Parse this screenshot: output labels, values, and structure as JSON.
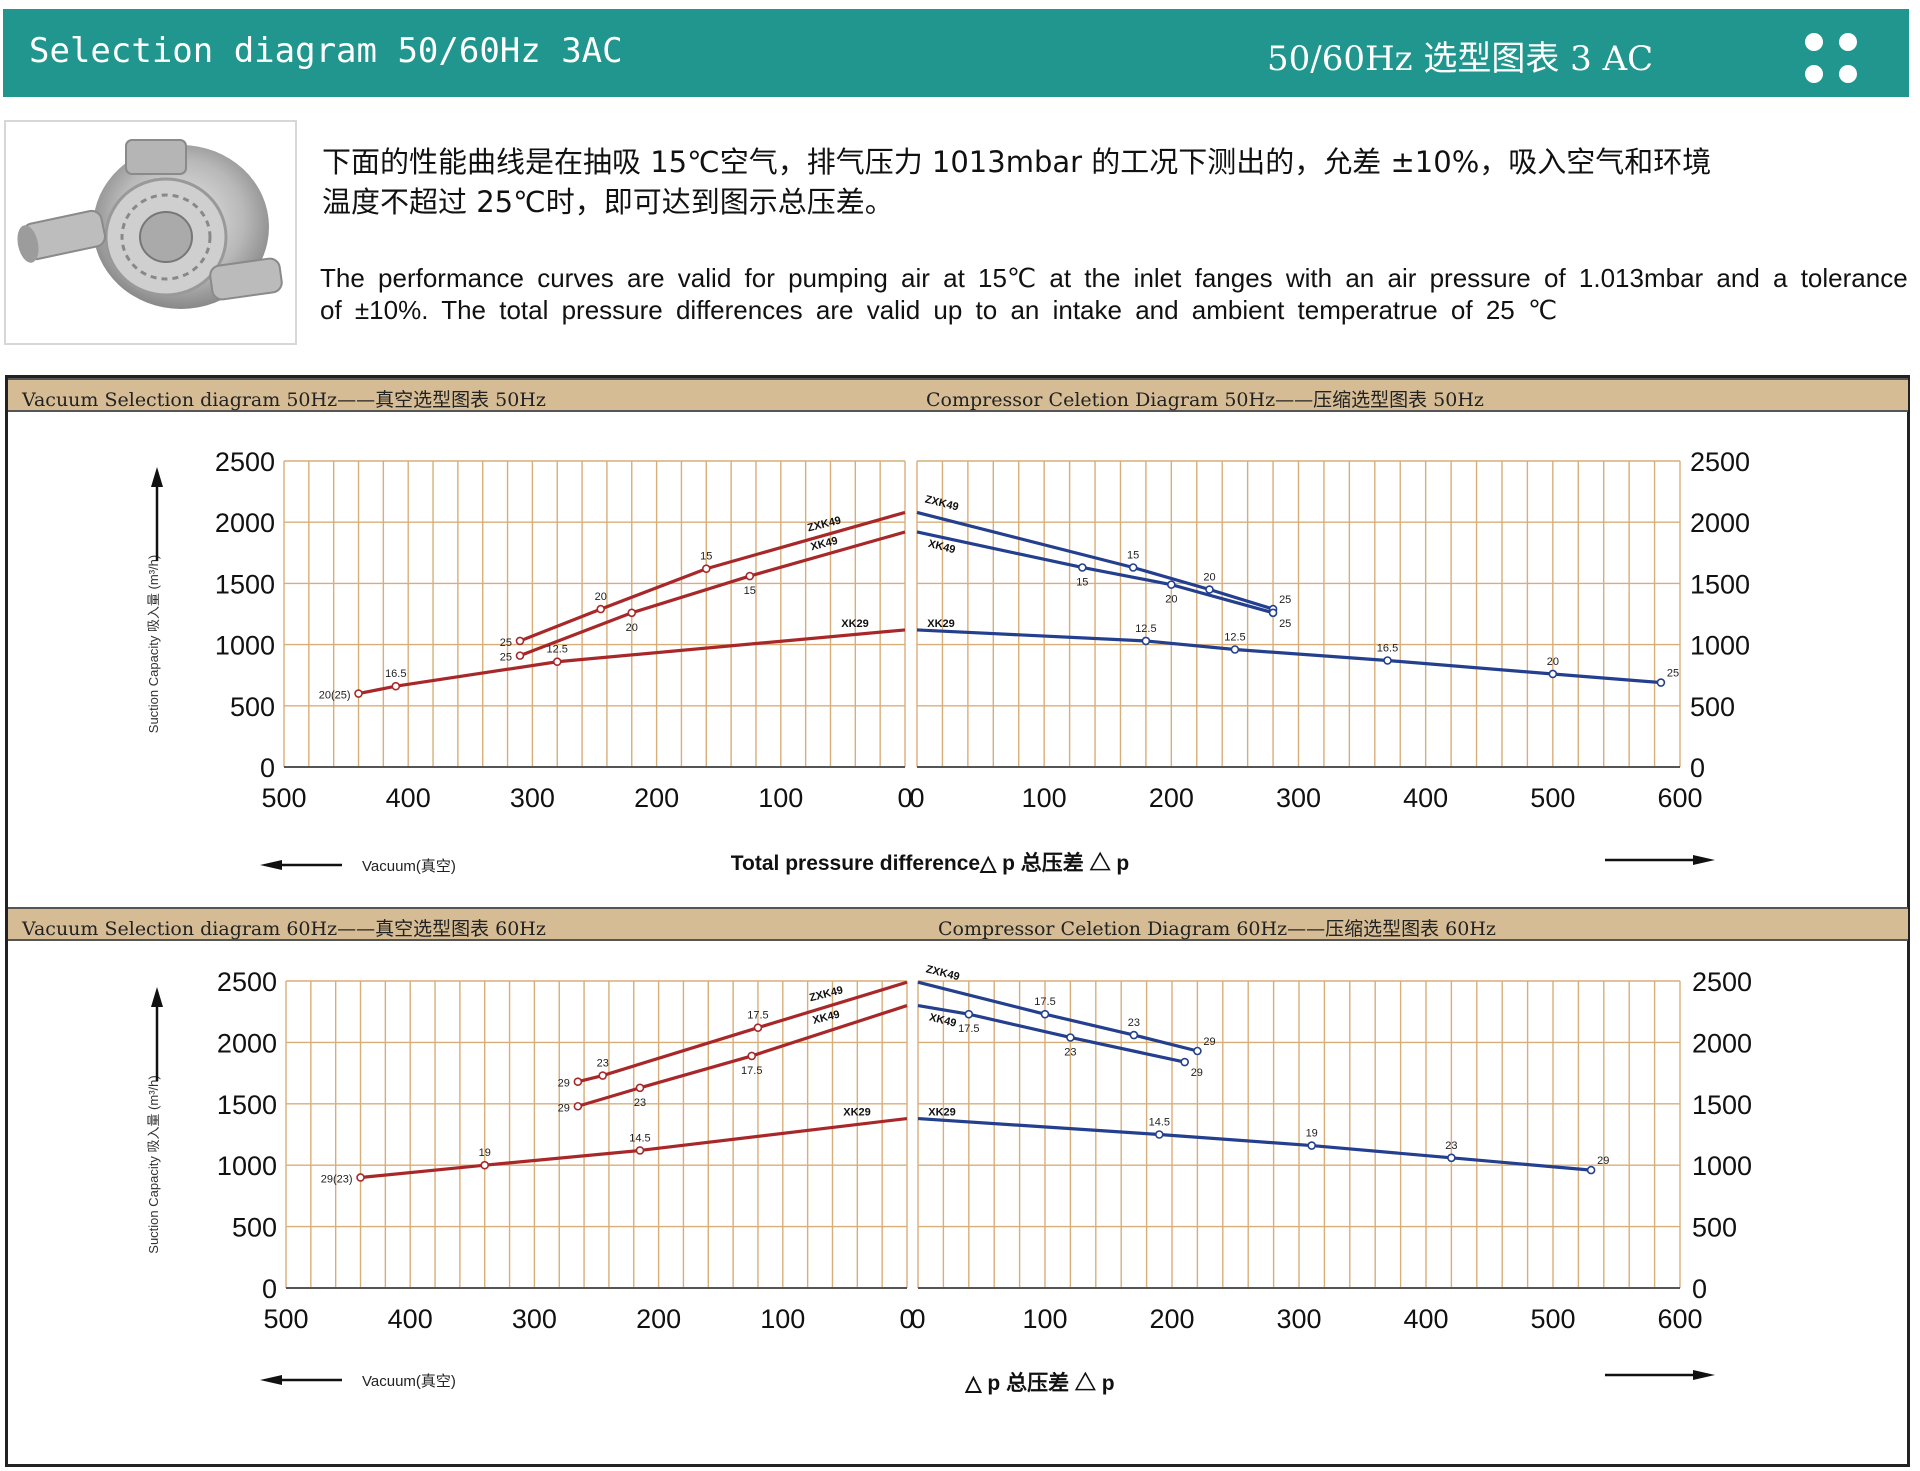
{
  "header": {
    "title_en": "Selection diagram 50/60Hz 3AC",
    "title_cn": "50/60Hz 选型图表 3 AC",
    "colors": {
      "teal": "#21968e",
      "red": "#a8282a",
      "blue": "#233f8e",
      "band": "#d5bc95",
      "grid": "#d8ae78"
    }
  },
  "intro": {
    "cn_line1": "下面的性能曲线是在抽吸 15℃空气，排气压力 1013mbar 的工况下测出的，允差 ±10%，吸入空气和环境",
    "cn_line2": "温度不超过 25℃时，即可达到图示总压差。",
    "en_line1": "The performance curves are valid for pumping air at 15℃ at the inlet fanges with an air pressure of 1.013mbar and a tolerance",
    "en_line2": "of ±10%. The total pressure differences are valid up to an intake and ambient temperatrue of 25 ℃"
  },
  "sections": {
    "s50": {
      "left_title": "Vacuum Selection diagram 50Hz——真空选型图表 50Hz",
      "right_title": "Compressor Celetion Diagram 50Hz——压缩选型图表 50Hz"
    },
    "s60": {
      "left_title": "Vacuum Selection diagram 60Hz——真空选型图表 60Hz",
      "right_title": "Compressor Celetion Diagram 60Hz——压缩选型图表 60Hz"
    }
  },
  "chart_data": [
    {
      "type": "line",
      "id": "c50",
      "frequency": "50Hz",
      "ylabel": "Suction Capacity 吸入量 (m³/h)",
      "vacuum_label": "Vacuum(真空)",
      "xlabel": "Total pressure difference△ p 总压差 △ p",
      "y_ticks": [
        "2500",
        "2000",
        "1500",
        "1000",
        "500",
        "0"
      ],
      "vac_ticks": [
        "500",
        "400",
        "300",
        "200",
        "100",
        "0"
      ],
      "press_ticks": [
        "0",
        "100",
        "200",
        "300",
        "400",
        "500",
        "600"
      ],
      "ylim": [
        0,
        2500
      ],
      "vacuum_xlim": [
        500,
        0
      ],
      "pressure_xlim": [
        0,
        600
      ],
      "vacuum_series": [
        {
          "name": "ZXK49",
          "points": [
            [
              310,
              1030
            ],
            [
              245,
              1290
            ],
            [
              160,
              1620
            ],
            [
              0,
              2080
            ]
          ],
          "labels": [
            "25",
            "20",
            "15",
            ""
          ]
        },
        {
          "name": "XK49",
          "points": [
            [
              310,
              910
            ],
            [
              220,
              1260
            ],
            [
              125,
              1560
            ],
            [
              0,
              1920
            ]
          ],
          "labels": [
            "25",
            "20",
            "15",
            ""
          ]
        },
        {
          "name": "XK29",
          "points": [
            [
              440,
              600
            ],
            [
              410,
              660
            ],
            [
              280,
              860
            ],
            [
              0,
              1120
            ]
          ],
          "labels": [
            "20(25)",
            "16.5",
            "12.5",
            ""
          ]
        }
      ],
      "pressure_series": [
        {
          "name": "ZXK49",
          "points": [
            [
              0,
              2080
            ],
            [
              170,
              1630
            ],
            [
              230,
              1450
            ],
            [
              280,
              1290
            ]
          ],
          "labels": [
            "",
            "15",
            "20",
            "25"
          ]
        },
        {
          "name": "XK49",
          "points": [
            [
              0,
              1920
            ],
            [
              130,
              1630
            ],
            [
              200,
              1490
            ],
            [
              280,
              1260
            ]
          ],
          "labels": [
            "",
            "15",
            "20",
            "25"
          ]
        },
        {
          "name": "XK29",
          "points": [
            [
              0,
              1120
            ],
            [
              180,
              1030
            ],
            [
              250,
              960
            ],
            [
              370,
              870
            ],
            [
              500,
              760
            ],
            [
              585,
              690
            ]
          ],
          "labels": [
            "",
            "12.5",
            "12.5",
            "16.5",
            "20",
            "25"
          ]
        }
      ]
    },
    {
      "type": "line",
      "id": "c60",
      "frequency": "60Hz",
      "ylabel": "Suction Capacity 吸入量 (m³/h)",
      "vacuum_label": "Vacuum(真空)",
      "xlabel": "△ p 总压差 △ p",
      "y_ticks": [
        "2500",
        "2000",
        "1500",
        "1000",
        "500",
        "0"
      ],
      "vac_ticks": [
        "500",
        "400",
        "300",
        "200",
        "100",
        "0"
      ],
      "press_ticks": [
        "0",
        "100",
        "200",
        "300",
        "400",
        "500",
        "600"
      ],
      "ylim": [
        0,
        2500
      ],
      "vacuum_xlim": [
        500,
        0
      ],
      "pressure_xlim": [
        0,
        600
      ],
      "vacuum_series": [
        {
          "name": "ZXK49",
          "points": [
            [
              265,
              1680
            ],
            [
              245,
              1730
            ],
            [
              120,
              2120
            ],
            [
              0,
              2490
            ]
          ],
          "labels": [
            "29",
            "23",
            "17.5",
            ""
          ]
        },
        {
          "name": "XK49",
          "points": [
            [
              265,
              1480
            ],
            [
              215,
              1630
            ],
            [
              125,
              1890
            ],
            [
              0,
              2300
            ]
          ],
          "labels": [
            "29",
            "23",
            "17.5",
            ""
          ]
        },
        {
          "name": "XK29",
          "points": [
            [
              440,
              900
            ],
            [
              340,
              1000
            ],
            [
              215,
              1120
            ],
            [
              0,
              1380
            ]
          ],
          "labels": [
            "29(23)",
            "19",
            "14.5",
            ""
          ]
        }
      ],
      "pressure_series": [
        {
          "name": "ZXK49",
          "points": [
            [
              0,
              2490
            ],
            [
              100,
              2230
            ],
            [
              170,
              2060
            ],
            [
              220,
              1930
            ]
          ],
          "labels": [
            "",
            "17.5",
            "23",
            "29"
          ]
        },
        {
          "name": "XK49",
          "points": [
            [
              0,
              2300
            ],
            [
              40,
              2230
            ],
            [
              120,
              2040
            ],
            [
              210,
              1840
            ]
          ],
          "labels": [
            "",
            "17.5",
            "23",
            "29"
          ]
        },
        {
          "name": "XK29",
          "points": [
            [
              0,
              1380
            ],
            [
              190,
              1250
            ],
            [
              310,
              1160
            ],
            [
              420,
              1060
            ],
            [
              530,
              960
            ]
          ],
          "labels": [
            "",
            "14.5",
            "19",
            "23",
            "29"
          ]
        }
      ]
    }
  ]
}
